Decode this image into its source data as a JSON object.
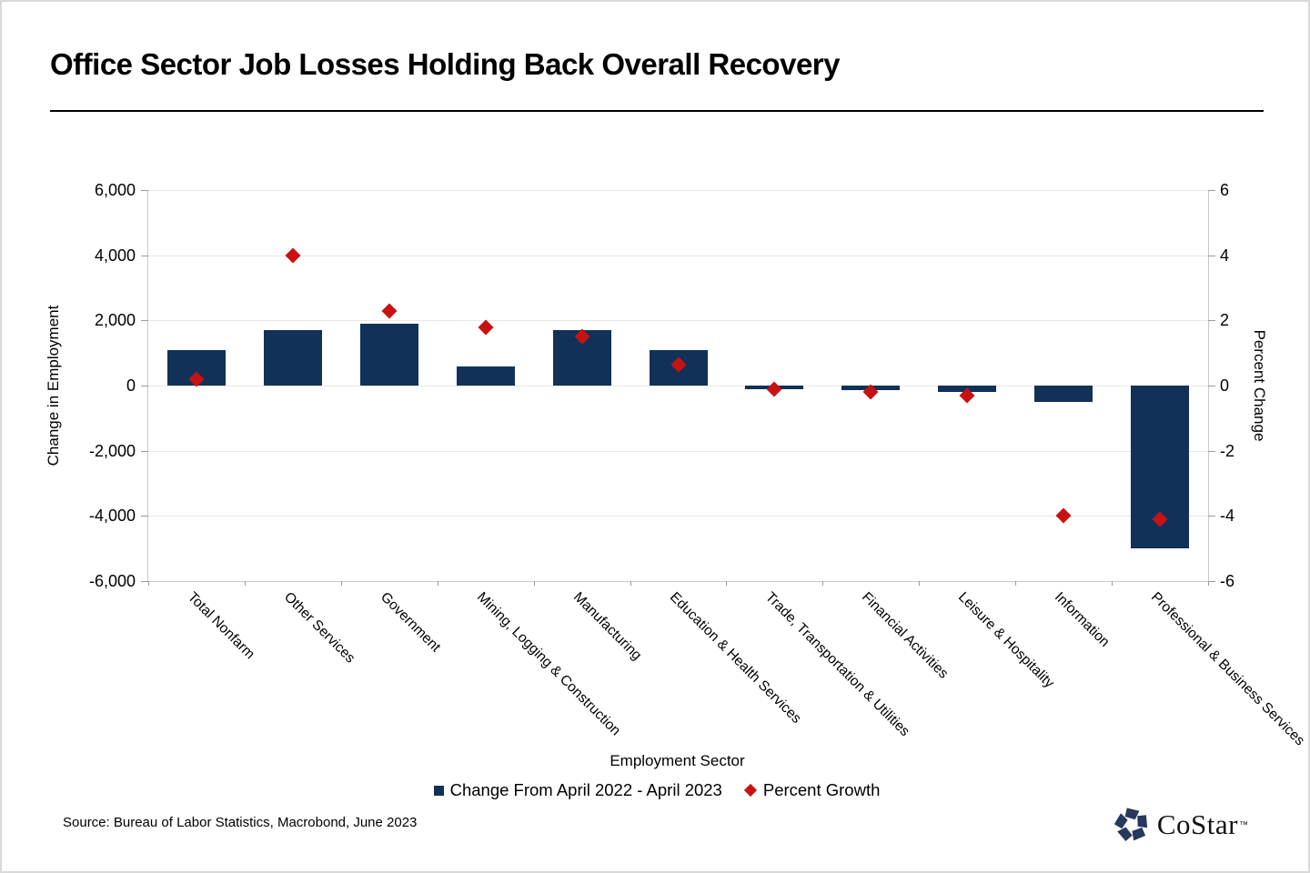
{
  "title": "Office Sector Job Losses Holding Back Overall Recovery",
  "source_note": "Source: Bureau of Labor Statistics, Macrobond, June 2023",
  "logo": {
    "text": "CoStar",
    "tm": "™"
  },
  "colors": {
    "bar": "#123159",
    "marker": "#c81212",
    "grid": "#e8e8e8",
    "axis": "#c9c9c9",
    "logo_navy": "#27395f"
  },
  "chart_data": {
    "type": "bar",
    "subtype": "dual-axis bar + diamond scatter",
    "title": "Office Sector Job Losses Holding Back Overall Recovery",
    "xlabel": "Employment Sector",
    "grid": true,
    "legend_position": "bottom-center",
    "categories": [
      "Total Nonfarm",
      "Other Services",
      "Government",
      "Mining, Logging & Construction",
      "Manufacturing",
      "Education & Health Services",
      "Trade, Transportation & Utilities",
      "Financial Activities",
      "Leisure & Hospitality",
      "Information",
      "Professional & Business Services"
    ],
    "series": [
      {
        "name": "Change From April 2022 - April 2023",
        "type": "bar",
        "axis": "left",
        "values": [
          1100,
          1700,
          1900,
          600,
          1700,
          1100,
          -100,
          -150,
          -200,
          -500,
          -5000
        ]
      },
      {
        "name": "Percent Growth",
        "type": "scatter-diamond",
        "axis": "right",
        "values": [
          0.2,
          4.0,
          2.3,
          1.8,
          1.5,
          0.65,
          -0.1,
          -0.2,
          -0.3,
          -4.0,
          -4.1
        ]
      }
    ],
    "left_axis": {
      "label": "Change in Employment",
      "min": -6000,
      "max": 6000,
      "tick_labels": [
        "6,000",
        "4,000",
        "2,000",
        "0",
        "-2,000",
        "-4,000",
        "-6,000"
      ]
    },
    "right_axis": {
      "label": "Percent Change",
      "min": -6,
      "max": 6,
      "tick_labels": [
        "6",
        "4",
        "2",
        "0",
        "-2",
        "-4",
        "-6"
      ]
    }
  }
}
